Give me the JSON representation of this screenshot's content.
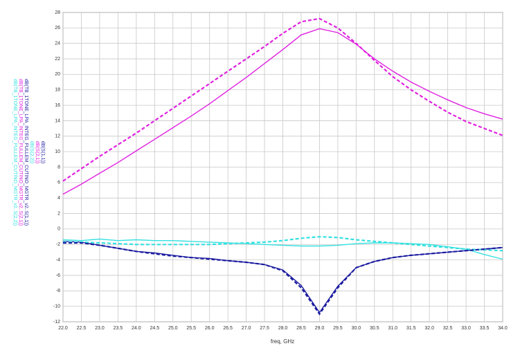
{
  "chart_data": {
    "type": "line",
    "x_label": "freq, GHz",
    "x": [
      22.0,
      22.5,
      23.0,
      23.5,
      24.0,
      24.5,
      25.0,
      25.5,
      26.0,
      26.5,
      27.0,
      27.5,
      28.0,
      28.5,
      29.0,
      29.5,
      30.0,
      30.5,
      31.0,
      31.5,
      32.0,
      32.5,
      33.0,
      33.5,
      34.0
    ],
    "xlim": [
      22,
      34
    ],
    "xticks": [
      {
        "value": 22,
        "label": "22.0"
      },
      {
        "value": 22.5,
        "label": "22.5"
      },
      {
        "value": 23,
        "label": "23.0"
      },
      {
        "value": 23.5,
        "label": "23.5"
      },
      {
        "value": 24,
        "label": "24.0"
      },
      {
        "value": 24.5,
        "label": "24.5"
      },
      {
        "value": 25,
        "label": "25.0"
      },
      {
        "value": 25.5,
        "label": "25.5"
      },
      {
        "value": 26,
        "label": "26.0"
      },
      {
        "value": 26.5,
        "label": "26.5"
      },
      {
        "value": 27,
        "label": "27.0"
      },
      {
        "value": 27.5,
        "label": "27.5"
      },
      {
        "value": 28,
        "label": "28.0"
      },
      {
        "value": 28.5,
        "label": "28.5"
      },
      {
        "value": 29,
        "label": "29.0"
      },
      {
        "value": 29.5,
        "label": "29.5"
      },
      {
        "value": 30,
        "label": "30.0"
      },
      {
        "value": 30.5,
        "label": "30.5"
      },
      {
        "value": 31,
        "label": "31.0"
      },
      {
        "value": 31.5,
        "label": "31.5"
      },
      {
        "value": 32,
        "label": "32.0"
      },
      {
        "value": 32.5,
        "label": "32.5"
      },
      {
        "value": 33,
        "label": "33.0"
      },
      {
        "value": 33.5,
        "label": "33.5"
      },
      {
        "value": 34,
        "label": "34.0"
      }
    ],
    "ylim": [
      -12,
      28
    ],
    "yticks": [
      -12,
      -10,
      -8,
      -6,
      -4,
      -2,
      0,
      2,
      4,
      6,
      8,
      10,
      12,
      14,
      16,
      18,
      20,
      22,
      24,
      26,
      28
    ],
    "grid": true,
    "series": [
      {
        "name": "dB(TB_1TONE_LPA_INTEG_FULLEM_CUTINO_MGTR_v2..S(2,2))",
        "color": "#33e0e0",
        "dash": false,
        "values": [
          -1.4,
          -1.5,
          -1.3,
          -1.5,
          -1.4,
          -1.5,
          -1.5,
          -1.6,
          -1.7,
          -1.8,
          -1.9,
          -2.0,
          -2.1,
          -2.2,
          -2.2,
          -2.1,
          -1.9,
          -1.8,
          -1.8,
          -1.9,
          -2.0,
          -2.3,
          -2.6,
          -3.3,
          -3.9
        ]
      },
      {
        "name": "dB(TB_1TONE_LPA_INTEG_FULLEM_CUTINO_MGTR_v2..S(2,1))",
        "color": "#e020e0",
        "dash": false,
        "values": [
          4.5,
          5.8,
          7.2,
          8.6,
          10.1,
          11.6,
          13.1,
          14.6,
          16.2,
          17.9,
          19.6,
          21.4,
          23.2,
          25.1,
          25.9,
          25.4,
          23.9,
          22.0,
          20.4,
          19.0,
          17.8,
          16.7,
          15.7,
          14.9,
          14.2
        ]
      },
      {
        "name": "dB(TB_1TONE_LPA_INTEG_FULLEM_CUTINO_MGTR_v2..S(1,1))",
        "color": "#1a1aa0",
        "dash": false,
        "values": [
          -1.6,
          -1.7,
          -2.1,
          -2.5,
          -2.9,
          -3.1,
          -3.4,
          -3.7,
          -3.8,
          -4.1,
          -4.3,
          -4.6,
          -5.3,
          -7.3,
          -10.8,
          -7.4,
          -5.0,
          -4.2,
          -3.7,
          -3.4,
          -3.2,
          -3.0,
          -2.8,
          -2.6,
          -2.4
        ]
      },
      {
        "name": "dB(S(2,2))",
        "color": "#33e0e0",
        "dash": true,
        "values": [
          -1.7,
          -1.7,
          -1.8,
          -1.9,
          -2.0,
          -2.0,
          -2.0,
          -2.0,
          -2.0,
          -1.9,
          -1.8,
          -1.7,
          -1.5,
          -1.2,
          -1.0,
          -1.1,
          -1.4,
          -1.6,
          -1.8,
          -2.0,
          -2.2,
          -2.4,
          -2.6,
          -2.7,
          -2.8
        ]
      },
      {
        "name": "dB(S(2,1))",
        "color": "#e020e0",
        "dash": true,
        "values": [
          6.2,
          7.8,
          9.4,
          10.9,
          12.4,
          14.0,
          15.6,
          17.2,
          18.8,
          20.4,
          22.0,
          23.6,
          25.3,
          26.8,
          27.2,
          26.0,
          24.0,
          21.8,
          19.7,
          18.0,
          16.5,
          15.1,
          13.9,
          13.0,
          12.1
        ]
      },
      {
        "name": "dB(S(1,1))",
        "color": "#1a1aa0",
        "dash": true,
        "values": [
          -1.8,
          -1.8,
          -2.1,
          -2.5,
          -2.9,
          -3.2,
          -3.5,
          -3.7,
          -3.9,
          -4.1,
          -4.3,
          -4.6,
          -5.4,
          -7.6,
          -11.0,
          -7.6,
          -5.0,
          -4.2,
          -3.7,
          -3.4,
          -3.2,
          -3.0,
          -2.8,
          -2.6,
          -2.4
        ]
      }
    ]
  }
}
